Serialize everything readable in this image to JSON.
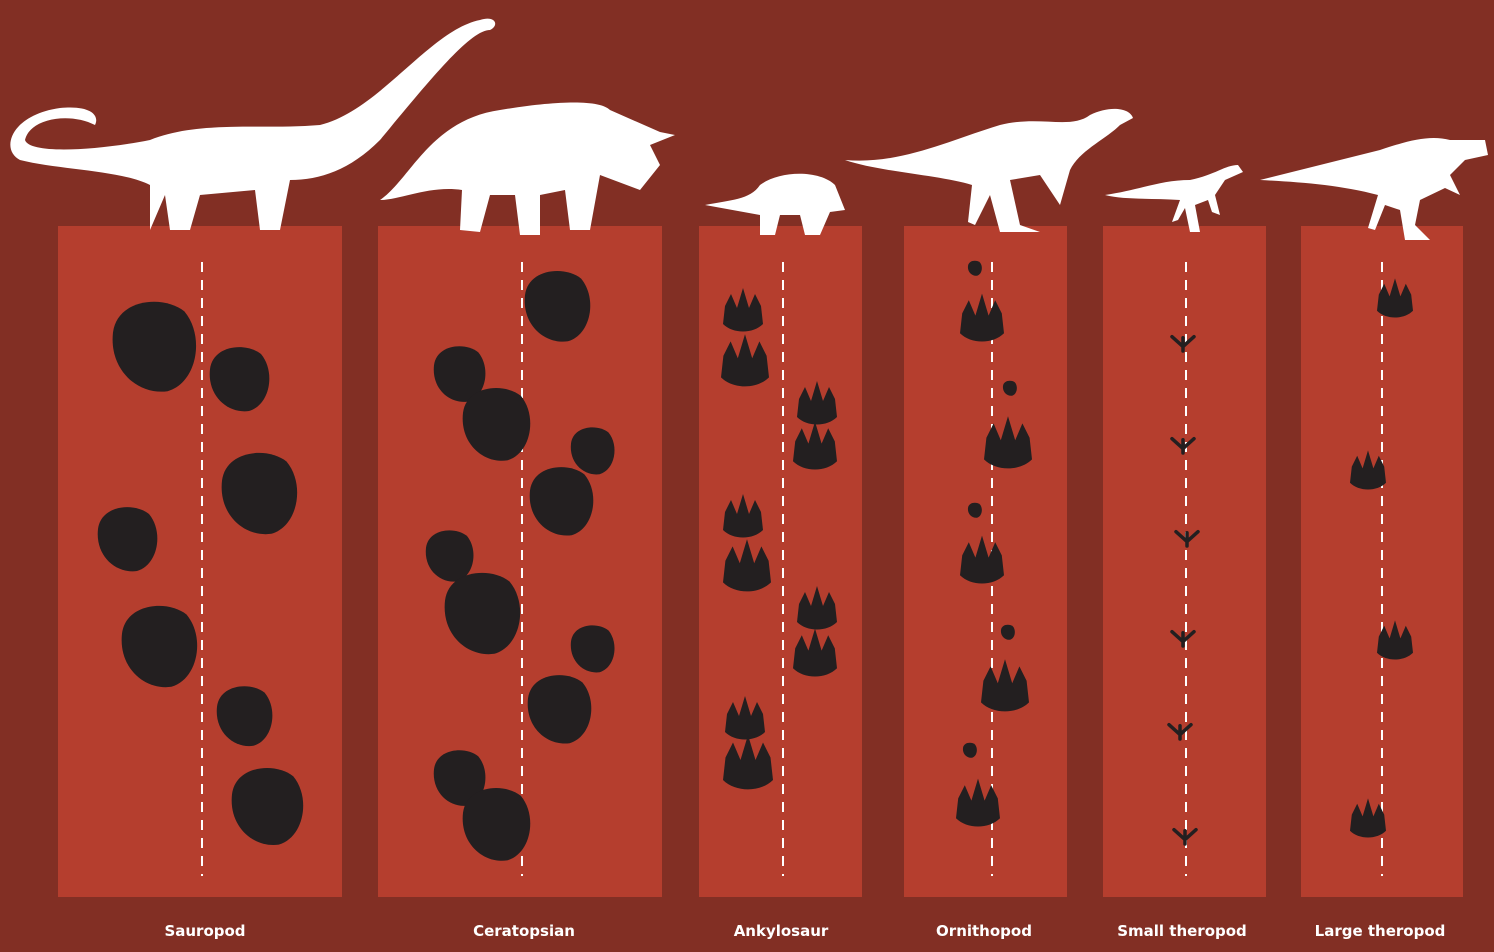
{
  "colors": {
    "background": "#822f24",
    "panel": "#b53e2e",
    "footprint": "#231f20",
    "silhouette": "#ffffff",
    "trackline": "#ffffff"
  },
  "groups": [
    {
      "label": "Sauropod",
      "footprint_style": "round"
    },
    {
      "label": "Ceratopsian",
      "footprint_style": "round-toed"
    },
    {
      "label": "Ankylosaur",
      "footprint_style": "toed"
    },
    {
      "label": "Ornithopod",
      "footprint_style": "three-toed"
    },
    {
      "label": "Small theropod",
      "footprint_style": "bird-like"
    },
    {
      "label": "Large theropod",
      "footprint_style": "three-toed-claw"
    }
  ]
}
